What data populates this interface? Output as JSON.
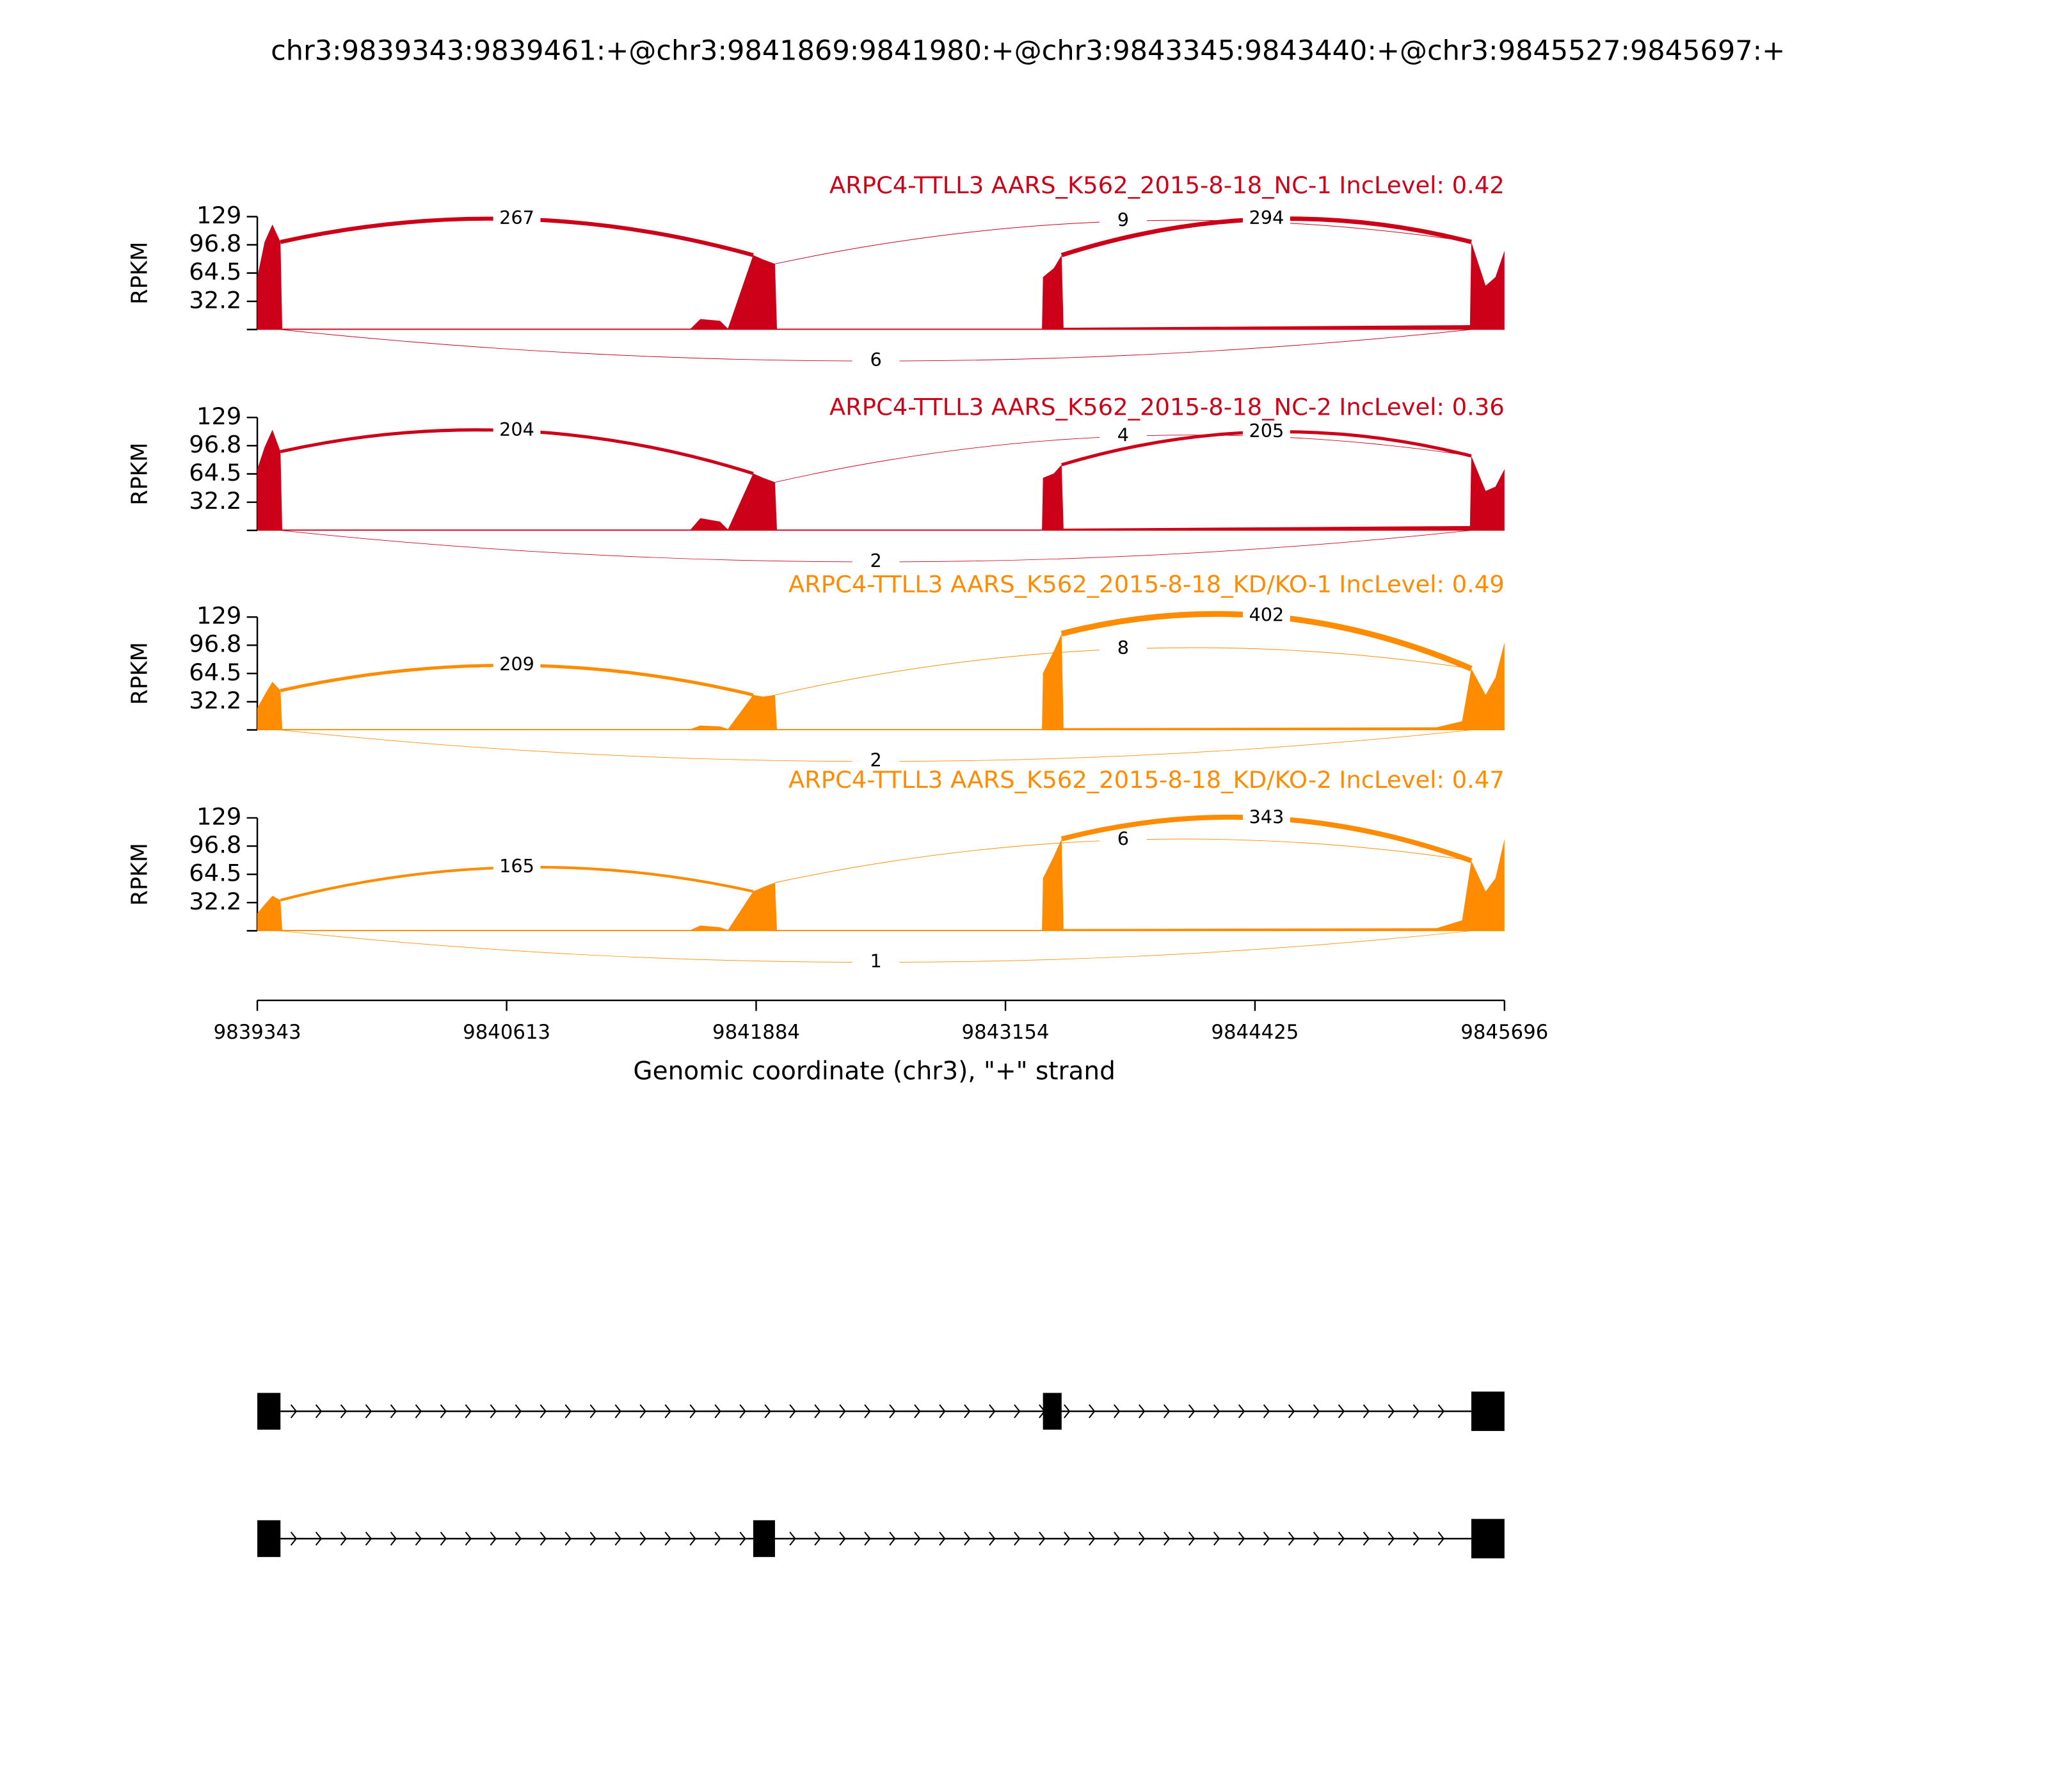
{
  "title": "chr3:9839343:9839461:+@chr3:9841869:9841980:+@chr3:9843345:9843440:+@chr3:9845527:9845697:+",
  "chart_data": [
    {
      "type": "sashimi",
      "label": "ARPC4-TTLL3 AARS_K562_2015-8-18_NC-1 IncLevel: 0.42",
      "color": "#cc0018",
      "ylabel": "RPKM",
      "ylim": [
        0,
        129
      ],
      "yticks": [
        32.2,
        64.5,
        96.8,
        129
      ],
      "coverage": {
        "x": [
          9839343,
          9839380,
          9839420,
          9839461,
          9839470,
          9841550,
          9841600,
          9841700,
          9841740,
          9841869,
          9841920,
          9841980,
          9841990,
          9843340,
          9843345,
          9843400,
          9843440,
          9843450,
          9845520,
          9845527,
          9845600,
          9845650,
          9845696
        ],
        "values": [
          60,
          100,
          120,
          100,
          1,
          1,
          12,
          10,
          1,
          85,
          80,
          75,
          1,
          1,
          60,
          70,
          85,
          2,
          5,
          100,
          50,
          60,
          90
        ]
      },
      "junctions": [
        {
          "start": 9839461,
          "end": 9841869,
          "count": 267,
          "side": "above"
        },
        {
          "start": 9841980,
          "end": 9845527,
          "count": 9,
          "side": "above"
        },
        {
          "start": 9843440,
          "end": 9845527,
          "count": 294,
          "side": "above"
        },
        {
          "start": 9839461,
          "end": 9845527,
          "count": 6,
          "side": "below"
        }
      ]
    },
    {
      "type": "sashimi",
      "label": "ARPC4-TTLL3 AARS_K562_2015-8-18_NC-2 IncLevel: 0.36",
      "color": "#cc0018",
      "ylabel": "RPKM",
      "ylim": [
        0,
        129
      ],
      "yticks": [
        32.2,
        64.5,
        96.8,
        129
      ],
      "coverage": {
        "x": [
          9839343,
          9839380,
          9839420,
          9839461,
          9839470,
          9841550,
          9841600,
          9841700,
          9841740,
          9841869,
          9841920,
          9841980,
          9841990,
          9843340,
          9843345,
          9843400,
          9843440,
          9843450,
          9845520,
          9845527,
          9845600,
          9845650,
          9845696
        ],
        "values": [
          70,
          95,
          115,
          90,
          1,
          1,
          14,
          10,
          1,
          65,
          60,
          55,
          1,
          1,
          60,
          65,
          75,
          2,
          5,
          85,
          45,
          50,
          70
        ]
      },
      "junctions": [
        {
          "start": 9839461,
          "end": 9841869,
          "count": 204,
          "side": "above"
        },
        {
          "start": 9841980,
          "end": 9845527,
          "count": 4,
          "side": "above"
        },
        {
          "start": 9843440,
          "end": 9845527,
          "count": 205,
          "side": "above"
        },
        {
          "start": 9839461,
          "end": 9845527,
          "count": 2,
          "side": "below"
        }
      ]
    },
    {
      "type": "sashimi",
      "label": "ARPC4-TTLL3 AARS_K562_2015-8-18_KD/KO-1 IncLevel: 0.49",
      "color": "#ff8c00",
      "ylabel": "RPKM",
      "ylim": [
        0,
        129
      ],
      "yticks": [
        32.2,
        64.5,
        96.8,
        129
      ],
      "coverage": {
        "x": [
          9839343,
          9839380,
          9839420,
          9839461,
          9839470,
          9841550,
          9841600,
          9841700,
          9841740,
          9841869,
          9841920,
          9841980,
          9841990,
          9843340,
          9843345,
          9843400,
          9843440,
          9843450,
          9845350,
          9845480,
          9845527,
          9845600,
          9845650,
          9845696
        ],
        "values": [
          25,
          40,
          55,
          45,
          1,
          1,
          5,
          4,
          1,
          40,
          38,
          40,
          1,
          1,
          65,
          90,
          110,
          2,
          3,
          10,
          70,
          40,
          60,
          100
        ]
      },
      "junctions": [
        {
          "start": 9839461,
          "end": 9841869,
          "count": 209,
          "side": "above"
        },
        {
          "start": 9841980,
          "end": 9845527,
          "count": 8,
          "side": "above"
        },
        {
          "start": 9843440,
          "end": 9845527,
          "count": 402,
          "side": "above"
        },
        {
          "start": 9839461,
          "end": 9845527,
          "count": 2,
          "side": "below"
        }
      ]
    },
    {
      "type": "sashimi",
      "label": "ARPC4-TTLL3 AARS_K562_2015-8-18_KD/KO-2 IncLevel: 0.47",
      "color": "#ff8c00",
      "ylabel": "RPKM",
      "ylim": [
        0,
        129
      ],
      "yticks": [
        32.2,
        64.5,
        96.8,
        129
      ],
      "coverage": {
        "x": [
          9839343,
          9839380,
          9839420,
          9839461,
          9839470,
          9841550,
          9841600,
          9841700,
          9841740,
          9841869,
          9841920,
          9841980,
          9841990,
          9843340,
          9843345,
          9843400,
          9843440,
          9843450,
          9845350,
          9845480,
          9845527,
          9845600,
          9845650,
          9845696
        ],
        "values": [
          20,
          30,
          40,
          35,
          1,
          1,
          6,
          4,
          1,
          45,
          50,
          55,
          1,
          1,
          60,
          85,
          105,
          2,
          3,
          12,
          80,
          45,
          60,
          105
        ]
      },
      "junctions": [
        {
          "start": 9839461,
          "end": 9841869,
          "count": 165,
          "side": "above"
        },
        {
          "start": 9841980,
          "end": 9845527,
          "count": 6,
          "side": "above"
        },
        {
          "start": 9843440,
          "end": 9845527,
          "count": 343,
          "side": "above"
        },
        {
          "start": 9839461,
          "end": 9845527,
          "count": 1,
          "side": "below"
        }
      ]
    }
  ],
  "xaxis": {
    "xlim": [
      9839343,
      9845696
    ],
    "xticks": [
      9839343,
      9840613,
      9841884,
      9843154,
      9844425,
      9845696
    ],
    "xlabel": "Genomic coordinate (chr3), \"+\" strand"
  },
  "isoforms": [
    {
      "exons": [
        [
          9839343,
          9839461
        ],
        [
          9843345,
          9843440
        ],
        [
          9845527,
          9845696
        ]
      ]
    },
    {
      "exons": [
        [
          9839343,
          9839461
        ],
        [
          9841869,
          9841980
        ],
        [
          9845527,
          9845696
        ]
      ]
    }
  ]
}
